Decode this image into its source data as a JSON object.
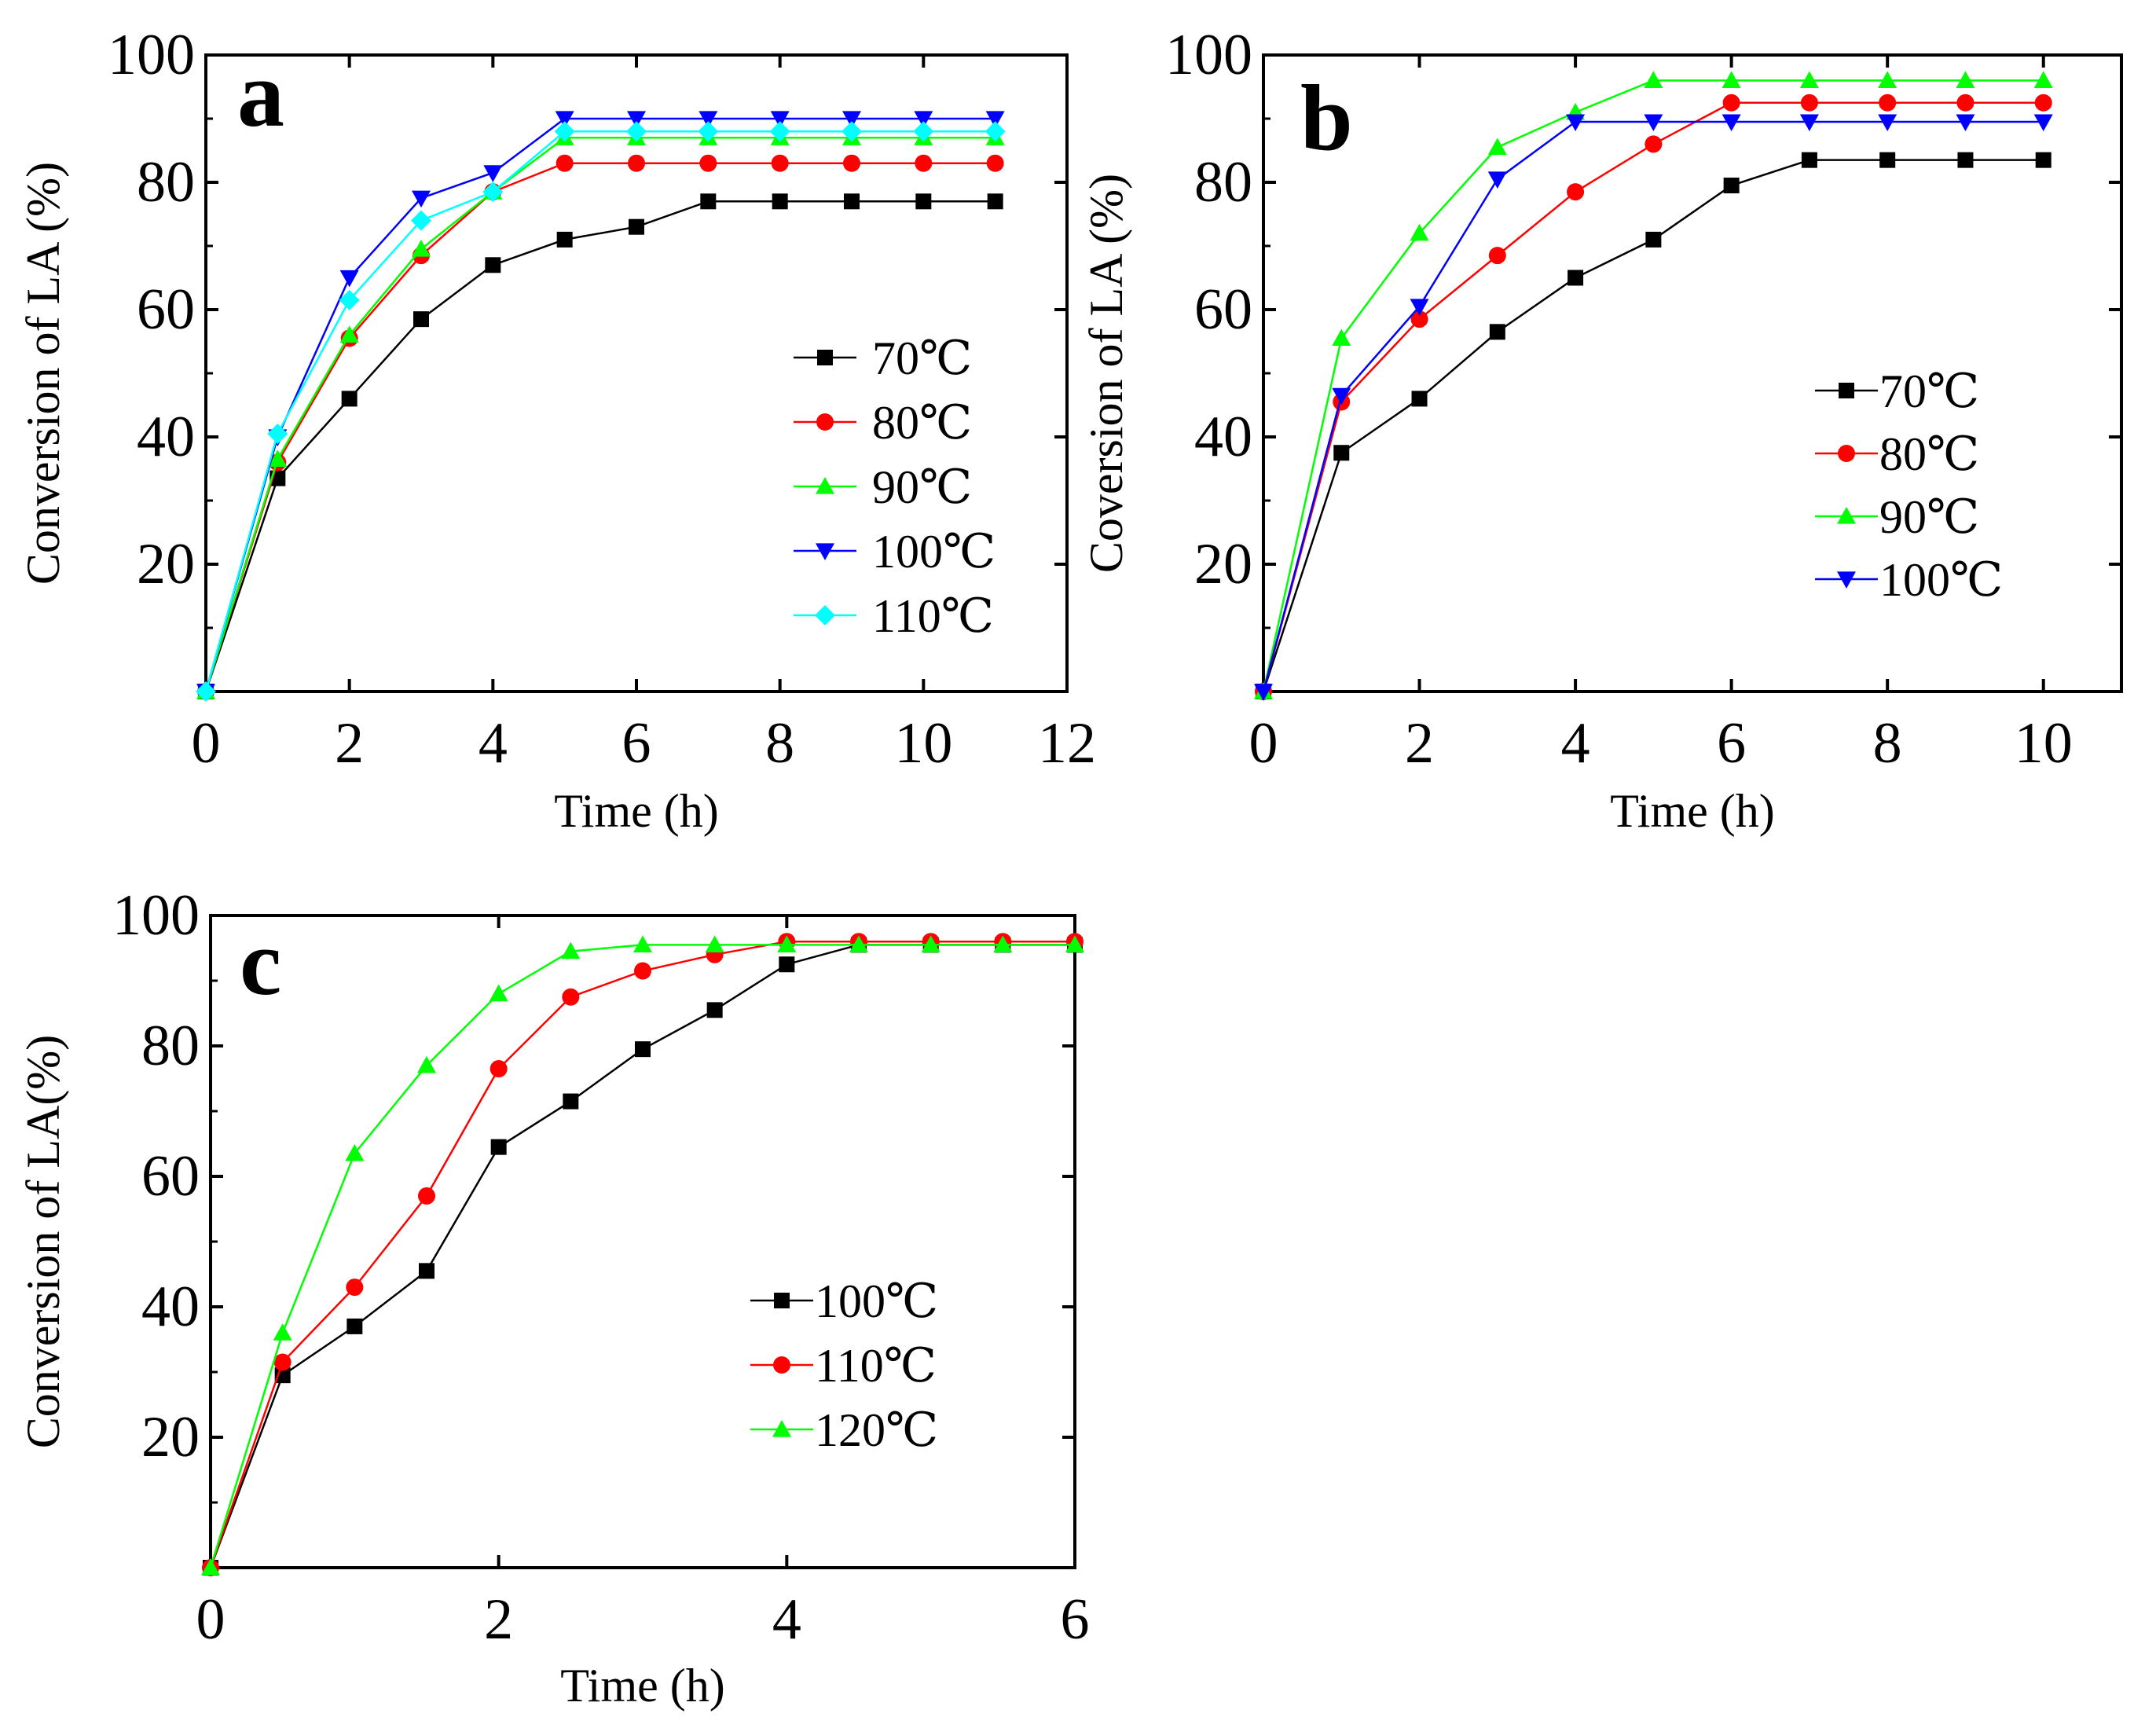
{
  "chart_data": [
    {
      "type": "line",
      "panel_label": "a",
      "xlabel": "Time (h)",
      "ylabel": "Conversion of LA (%)",
      "xlim": [
        0,
        12
      ],
      "ylim": [
        0,
        100
      ],
      "xticks": [
        0,
        2,
        4,
        6,
        8,
        10,
        12
      ],
      "xtick_labels": [
        "0",
        "2",
        "4",
        "6",
        "8",
        "10",
        "12"
      ],
      "yticks": [
        20,
        40,
        60,
        80,
        100
      ],
      "ytick_labels": [
        "20",
        "40",
        "60",
        "80",
        "100"
      ],
      "legend_position": "right-middle",
      "x": [
        0,
        1,
        2,
        3,
        4,
        5,
        6,
        7,
        8,
        9,
        10,
        11
      ],
      "series": [
        {
          "name": "70℃",
          "legend_label": "70℃",
          "color": "#000000",
          "marker": "square",
          "values": [
            0,
            33.5,
            46,
            58.5,
            67,
            71,
            73,
            77,
            77,
            77,
            77,
            77
          ]
        },
        {
          "name": "80℃",
          "legend_label": "80℃",
          "color": "#ff0000",
          "marker": "circle",
          "values": [
            0,
            36,
            55.5,
            68.5,
            78.5,
            83,
            83,
            83,
            83,
            83,
            83,
            83
          ]
        },
        {
          "name": "90℃",
          "legend_label": "90℃",
          "color": "#00ff00",
          "marker": "triangle-up",
          "values": [
            0,
            36.5,
            56,
            69.5,
            78.5,
            87,
            87,
            87,
            87,
            87,
            87,
            87
          ]
        },
        {
          "name": "100℃",
          "legend_label": "100℃",
          "color": "#0000ff",
          "marker": "triangle-down",
          "values": [
            0,
            40,
            65,
            77.5,
            81.5,
            90,
            90,
            90,
            90,
            90,
            90,
            90
          ]
        },
        {
          "name": "110℃",
          "legend_label": "110℃",
          "color": "#00ffff",
          "marker": "diamond",
          "values": [
            0,
            40.5,
            61.5,
            74,
            78.5,
            88,
            88,
            88,
            88,
            88,
            88,
            88
          ]
        }
      ]
    },
    {
      "type": "line",
      "panel_label": "b",
      "xlabel": "Time (h)",
      "ylabel": "Coversion of LA (%)",
      "xlim": [
        0,
        11
      ],
      "ylim": [
        0,
        100
      ],
      "xticks": [
        0,
        2,
        4,
        6,
        8,
        10
      ],
      "xtick_labels": [
        "0",
        "2",
        "4",
        "6",
        "8",
        "10"
      ],
      "yticks": [
        20,
        40,
        60,
        80,
        100
      ],
      "ytick_labels": [
        "20",
        "40",
        "60",
        "80",
        "100"
      ],
      "legend_position": "right-middle",
      "x": [
        0,
        1,
        2,
        3,
        4,
        5,
        6,
        7,
        8,
        9,
        10
      ],
      "series": [
        {
          "name": "70℃",
          "legend_label": "70℃",
          "color": "#000000",
          "marker": "square",
          "values": [
            0,
            37.5,
            46,
            56.5,
            65,
            71,
            79.5,
            83.5,
            83.5,
            83.5,
            83.5
          ]
        },
        {
          "name": "80℃",
          "legend_label": "80℃",
          "color": "#ff0000",
          "marker": "circle",
          "values": [
            0,
            45.5,
            58.5,
            68.5,
            78.5,
            86,
            92.5,
            92.5,
            92.5,
            92.5,
            92.5
          ]
        },
        {
          "name": "90℃",
          "legend_label": "90℃",
          "color": "#00ff00",
          "marker": "triangle-up",
          "values": [
            0,
            55.5,
            72,
            85.5,
            91,
            96,
            96,
            96,
            96,
            96,
            96
          ]
        },
        {
          "name": "100℃",
          "legend_label": "100℃",
          "color": "#0000ff",
          "marker": "triangle-down",
          "values": [
            0,
            46.5,
            60.5,
            80.5,
            89.5,
            89.5,
            89.5,
            89.5,
            89.5,
            89.5,
            89.5
          ]
        }
      ]
    },
    {
      "type": "line",
      "panel_label": "c",
      "xlabel": "Time (h)",
      "ylabel": "Conversion of LA(%)",
      "xlim": [
        0,
        6
      ],
      "ylim": [
        0,
        100
      ],
      "xticks": [
        0,
        2,
        4,
        6
      ],
      "xtick_labels": [
        "0",
        "2",
        "4",
        "6"
      ],
      "yticks": [
        20,
        40,
        60,
        80,
        100
      ],
      "ytick_labels": [
        "20",
        "40",
        "60",
        "80",
        "100"
      ],
      "legend_position": "right-middle",
      "x": [
        0,
        0.5,
        1,
        1.5,
        2,
        2.5,
        3,
        3.5,
        4,
        4.5,
        5,
        5.5,
        6
      ],
      "series": [
        {
          "name": "100℃",
          "legend_label": "100℃",
          "color": "#000000",
          "marker": "square",
          "values": [
            0,
            29.5,
            37,
            45.5,
            64.5,
            71.5,
            79.5,
            85.5,
            92.5,
            95.5,
            95.5,
            95.5,
            95.5
          ]
        },
        {
          "name": "110℃",
          "legend_label": "110℃",
          "color": "#ff0000",
          "marker": "circle",
          "values": [
            0,
            31.5,
            43,
            57,
            76.5,
            87.5,
            91.5,
            94,
            96,
            96,
            96,
            96,
            96
          ]
        },
        {
          "name": "120℃",
          "legend_label": "120℃",
          "color": "#00ff00",
          "marker": "triangle-up",
          "values": [
            0,
            36,
            63.5,
            77,
            88,
            94.5,
            95.5,
            95.5,
            95.5,
            95.5,
            95.5,
            95.5,
            95.5
          ]
        }
      ]
    }
  ]
}
